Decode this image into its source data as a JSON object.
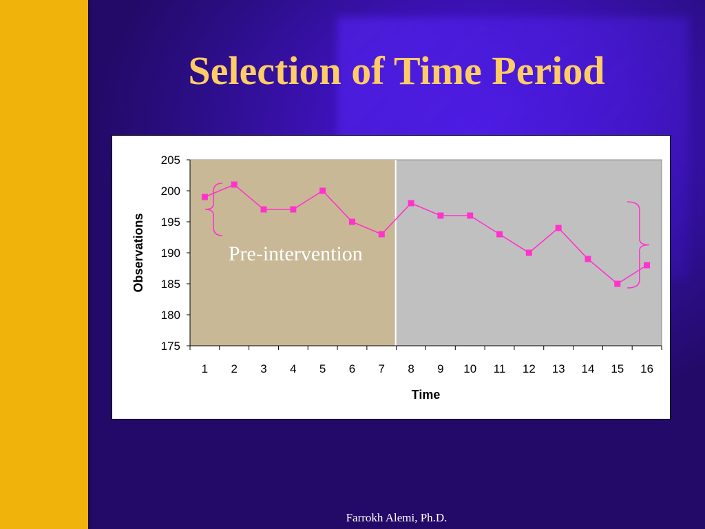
{
  "slide": {
    "title": "Selection of Time Period",
    "footer": "Farrokh Alemi, Ph.D.",
    "colors": {
      "background": "#3a10b0",
      "sidebar": "#f0b30c",
      "title": "#ffcc66"
    }
  },
  "chart_data": {
    "type": "line",
    "x": [
      1,
      2,
      3,
      4,
      5,
      6,
      7,
      8,
      9,
      10,
      11,
      12,
      13,
      14,
      15,
      16
    ],
    "series": [
      {
        "values": [
          199,
          201,
          197,
          197,
          200,
          195,
          193,
          198,
          196,
          196,
          193,
          190,
          194,
          189,
          185,
          188
        ],
        "color": "#ff33cc"
      }
    ],
    "xlabel": "Time",
    "ylabel": "Observations",
    "ylim": [
      175,
      205
    ],
    "yticks": [
      175,
      180,
      185,
      190,
      195,
      200,
      205
    ],
    "xticks": [
      "1",
      "2",
      "3",
      "4",
      "5",
      "6",
      "7",
      "8",
      "9",
      "10",
      "11",
      "12",
      "13",
      "14",
      "15",
      "16"
    ],
    "marker": "square",
    "plot_background": "#c0c0c0",
    "highlight_region": {
      "x_range": [
        1,
        7
      ],
      "color": "#c8b896"
    },
    "annotations": [
      {
        "text": "Pre-intervention"
      }
    ],
    "grid": false,
    "legend": "none"
  }
}
